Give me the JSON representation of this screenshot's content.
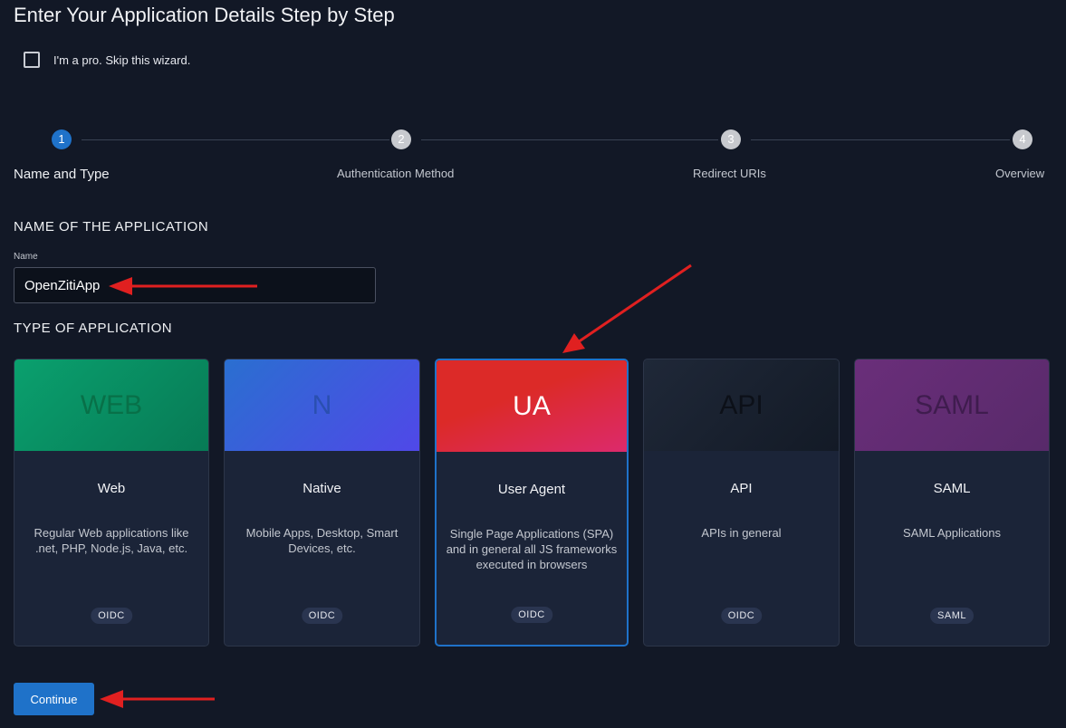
{
  "title": "Enter Your Application Details Step by Step",
  "skip_label": "I'm a pro. Skip this wizard.",
  "steps": [
    {
      "num": "1",
      "label": "Name and Type",
      "active": true
    },
    {
      "num": "2",
      "label": "Authentication Method"
    },
    {
      "num": "3",
      "label": "Redirect URIs"
    },
    {
      "num": "4",
      "label": "Overview"
    }
  ],
  "name_section": "NAME OF THE APPLICATION",
  "name_label": "Name",
  "name_value": "OpenZitiApp",
  "type_section": "TYPE OF APPLICATION",
  "cards": [
    {
      "abbr": "WEB",
      "name": "Web",
      "desc": "Regular Web applications like .net, PHP, Node.js, Java, etc.",
      "badge": "OIDC"
    },
    {
      "abbr": "N",
      "name": "Native",
      "desc": "Mobile Apps, Desktop, Smart Devices, etc.",
      "badge": "OIDC"
    },
    {
      "abbr": "UA",
      "name": "User Agent",
      "desc": "Single Page Applications (SPA) and in general all JS frameworks executed in browsers",
      "badge": "OIDC",
      "selected": true
    },
    {
      "abbr": "API",
      "name": "API",
      "desc": "APIs in general",
      "badge": "OIDC"
    },
    {
      "abbr": "SAML",
      "name": "SAML",
      "desc": "SAML Applications",
      "badge": "SAML"
    }
  ],
  "continue_label": "Continue",
  "colors": {
    "accent": "#1f72c9",
    "annotation_arrow": "#e02020"
  }
}
